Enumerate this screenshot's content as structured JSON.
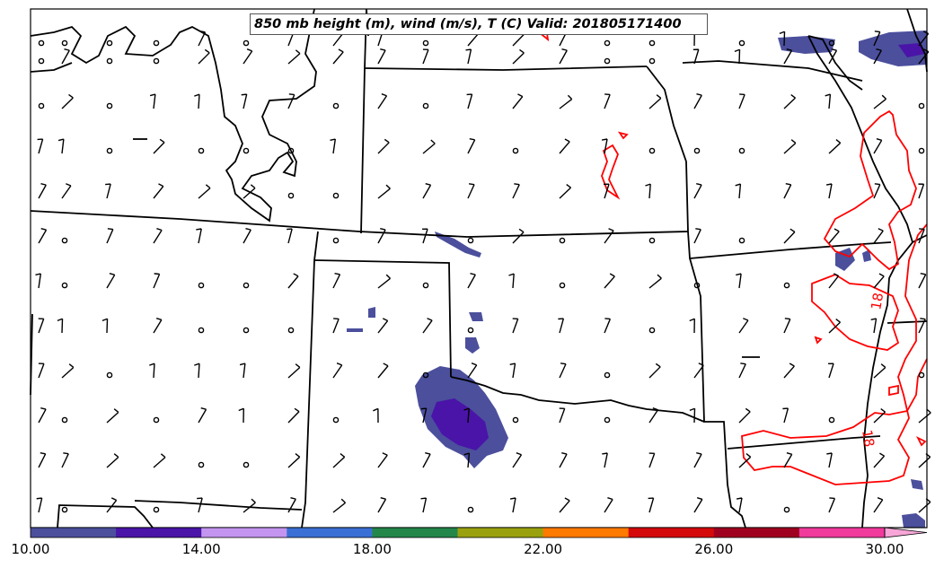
{
  "map": {
    "title": "850 mb height (m), wind (m/s), T (C)  Valid: 201805171400",
    "contour_labels": [
      "18",
      "18"
    ]
  },
  "colorbar": {
    "ticks": [
      "10.00",
      "14.00",
      "18.00",
      "22.00",
      "26.00",
      "30.00"
    ],
    "min": 10,
    "max": 30,
    "step": 2,
    "colors": [
      "#4b4f9c",
      "#4a14a8",
      "#c495f0",
      "#3a70d6",
      "#23874a",
      "#9aa10e",
      "#ff7a00",
      "#d40a0a",
      "#a0001f",
      "#f03a9c",
      "#f8a6d8"
    ]
  },
  "styles": {
    "contour_color": "#ff0000",
    "border_color": "#000000",
    "shade_low": "#4b4f9c",
    "shade_high": "#4a14a8"
  }
}
